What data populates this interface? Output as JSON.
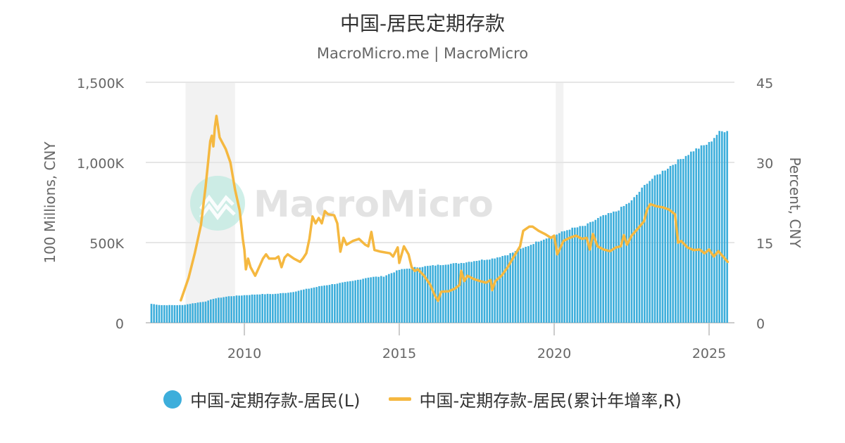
{
  "header": {
    "title": "中国-居民定期存款",
    "subtitle": "MacroMicro.me | MacroMicro"
  },
  "watermark": "MacroMicro",
  "colors": {
    "bar": "#3daedb",
    "line": "#f5b840",
    "grid": "#e6e6e6",
    "recession": "#f2f2f2",
    "axis_text": "#666666"
  },
  "legend": [
    {
      "label": "中国-定期存款-居民(L)",
      "type": "circle",
      "color": "#3daedb"
    },
    {
      "label": "中国-定期存款-居民(累计年增率,R)",
      "type": "line",
      "color": "#f5b840"
    }
  ],
  "chart_data": {
    "type": "bar+line",
    "title": "中国-居民定期存款",
    "subtitle": "MacroMicro.me | MacroMicro",
    "xlabel": "",
    "ylabel_left": "100 Millions, CNY",
    "ylabel_right": "Percent, CNY",
    "ylim_left": [
      0,
      1500
    ],
    "ylim_right": [
      0,
      45
    ],
    "yticks_left": [
      "0",
      "500K",
      "1,000K",
      "1,500K"
    ],
    "yticks_right": [
      "0",
      "15",
      "30",
      "45"
    ],
    "xticks": [
      "2010",
      "2015",
      "2020",
      "2025"
    ],
    "x_range": [
      2006.8,
      2025.8
    ],
    "grid": true,
    "legend_position": "bottom",
    "recession_bands": [
      [
        2008.1,
        2009.7
      ],
      [
        2020.05,
        2020.3
      ]
    ],
    "series": [
      {
        "name": "中国-定期存款-居民(L)",
        "axis": "left",
        "type": "bar",
        "unit": "K (100 Millions CNY)",
        "anchors_x": [
          2007.0,
          2007.3,
          2008.0,
          2008.3,
          2008.8,
          2009.0,
          2009.5,
          2010.0,
          2010.5,
          2011.0,
          2011.5,
          2012.0,
          2012.5,
          2013.0,
          2013.5,
          2014.0,
          2014.5,
          2015.0,
          2015.5,
          2016.0,
          2016.5,
          2017.0,
          2017.5,
          2018.0,
          2018.5,
          2019.0,
          2019.5,
          2020.0,
          2020.5,
          2021.0,
          2021.5,
          2022.0,
          2022.5,
          2023.0,
          2023.5,
          2024.0,
          2024.5,
          2025.0,
          2025.3,
          2025.6
        ],
        "anchors_y": [
          118,
          110,
          110,
          120,
          135,
          150,
          165,
          172,
          178,
          180,
          190,
          210,
          230,
          245,
          260,
          283,
          290,
          330,
          345,
          355,
          365,
          373,
          388,
          400,
          425,
          465,
          510,
          545,
          585,
          605,
          660,
          695,
          760,
          875,
          945,
          1010,
          1075,
          1120,
          1185,
          1205
        ]
      },
      {
        "name": "中国-定期存款-居民(累计年增率,R)",
        "axis": "right",
        "type": "line",
        "unit": "%",
        "x": [
          2007.95,
          2008.2,
          2008.4,
          2008.6,
          2008.75,
          2008.9,
          2008.95,
          2009.0,
          2009.05,
          2009.1,
          2009.2,
          2009.4,
          2009.55,
          2009.7,
          2009.85,
          2009.95,
          2010.0,
          2010.05,
          2010.12,
          2010.2,
          2010.35,
          2010.5,
          2010.6,
          2010.7,
          2010.8,
          2011.0,
          2011.1,
          2011.2,
          2011.3,
          2011.4,
          2011.6,
          2011.8,
          2011.9,
          2012.0,
          2012.1,
          2012.2,
          2012.3,
          2012.4,
          2012.5,
          2012.6,
          2012.7,
          2012.9,
          2013.0,
          2013.1,
          2013.2,
          2013.3,
          2013.5,
          2013.7,
          2013.9,
          2014.0,
          2014.1,
          2014.2,
          2014.4,
          2014.7,
          2014.8,
          2014.95,
          2015.0,
          2015.15,
          2015.3,
          2015.4,
          2015.5,
          2015.6,
          2015.8,
          2016.0,
          2016.15,
          2016.25,
          2016.35,
          2016.6,
          2016.8,
          2016.95,
          2017.0,
          2017.1,
          2017.2,
          2017.4,
          2017.6,
          2017.8,
          2017.95,
          2018.0,
          2018.1,
          2018.3,
          2018.5,
          2018.7,
          2018.9,
          2019.0,
          2019.1,
          2019.2,
          2019.3,
          2019.5,
          2019.7,
          2019.9,
          2020.0,
          2020.1,
          2020.3,
          2020.5,
          2020.7,
          2020.9,
          2021.05,
          2021.15,
          2021.25,
          2021.4,
          2021.6,
          2021.8,
          2022.0,
          2022.15,
          2022.25,
          2022.35,
          2022.5,
          2022.7,
          2022.9,
          2023.0,
          2023.1,
          2023.3,
          2023.5,
          2023.7,
          2023.9,
          2024.0,
          2024.1,
          2024.3,
          2024.5,
          2024.7,
          2024.85,
          2025.0,
          2025.15,
          2025.3,
          2025.45,
          2025.6
        ],
        "values": [
          4.2,
          8.4,
          13.0,
          18.3,
          25.5,
          34.0,
          35.0,
          33.0,
          36.7,
          38.7,
          34.7,
          32.5,
          30.0,
          24.9,
          21.0,
          15.7,
          13.7,
          10.0,
          12.0,
          10.4,
          8.8,
          10.7,
          12.0,
          12.8,
          12.0,
          12.0,
          12.4,
          10.4,
          12.2,
          12.8,
          12.0,
          11.4,
          12.1,
          13.0,
          15.7,
          19.9,
          18.6,
          19.6,
          18.6,
          20.9,
          20.3,
          20.1,
          18.6,
          13.3,
          15.9,
          14.6,
          15.3,
          15.7,
          14.6,
          14.3,
          17.0,
          13.6,
          13.3,
          13.0,
          12.4,
          14.1,
          11.2,
          14.3,
          12.8,
          10.4,
          9.7,
          10.0,
          8.8,
          7.1,
          5.1,
          4.1,
          5.8,
          5.9,
          6.4,
          7.1,
          9.7,
          7.8,
          8.8,
          8.2,
          7.8,
          7.5,
          8.0,
          6.1,
          7.8,
          8.8,
          10.4,
          12.4,
          14.3,
          17.2,
          17.6,
          18.0,
          18.0,
          17.2,
          16.6,
          15.9,
          16.3,
          12.8,
          15.3,
          15.9,
          16.3,
          15.7,
          15.9,
          13.7,
          16.6,
          14.3,
          13.7,
          13.4,
          14.1,
          14.3,
          16.4,
          14.6,
          16.3,
          17.6,
          19.0,
          21.2,
          22.2,
          21.8,
          21.6,
          21.2,
          20.3,
          15.0,
          15.3,
          14.1,
          13.6,
          13.7,
          13.0,
          13.7,
          12.4,
          13.4,
          12.4,
          11.4
        ]
      }
    ]
  }
}
